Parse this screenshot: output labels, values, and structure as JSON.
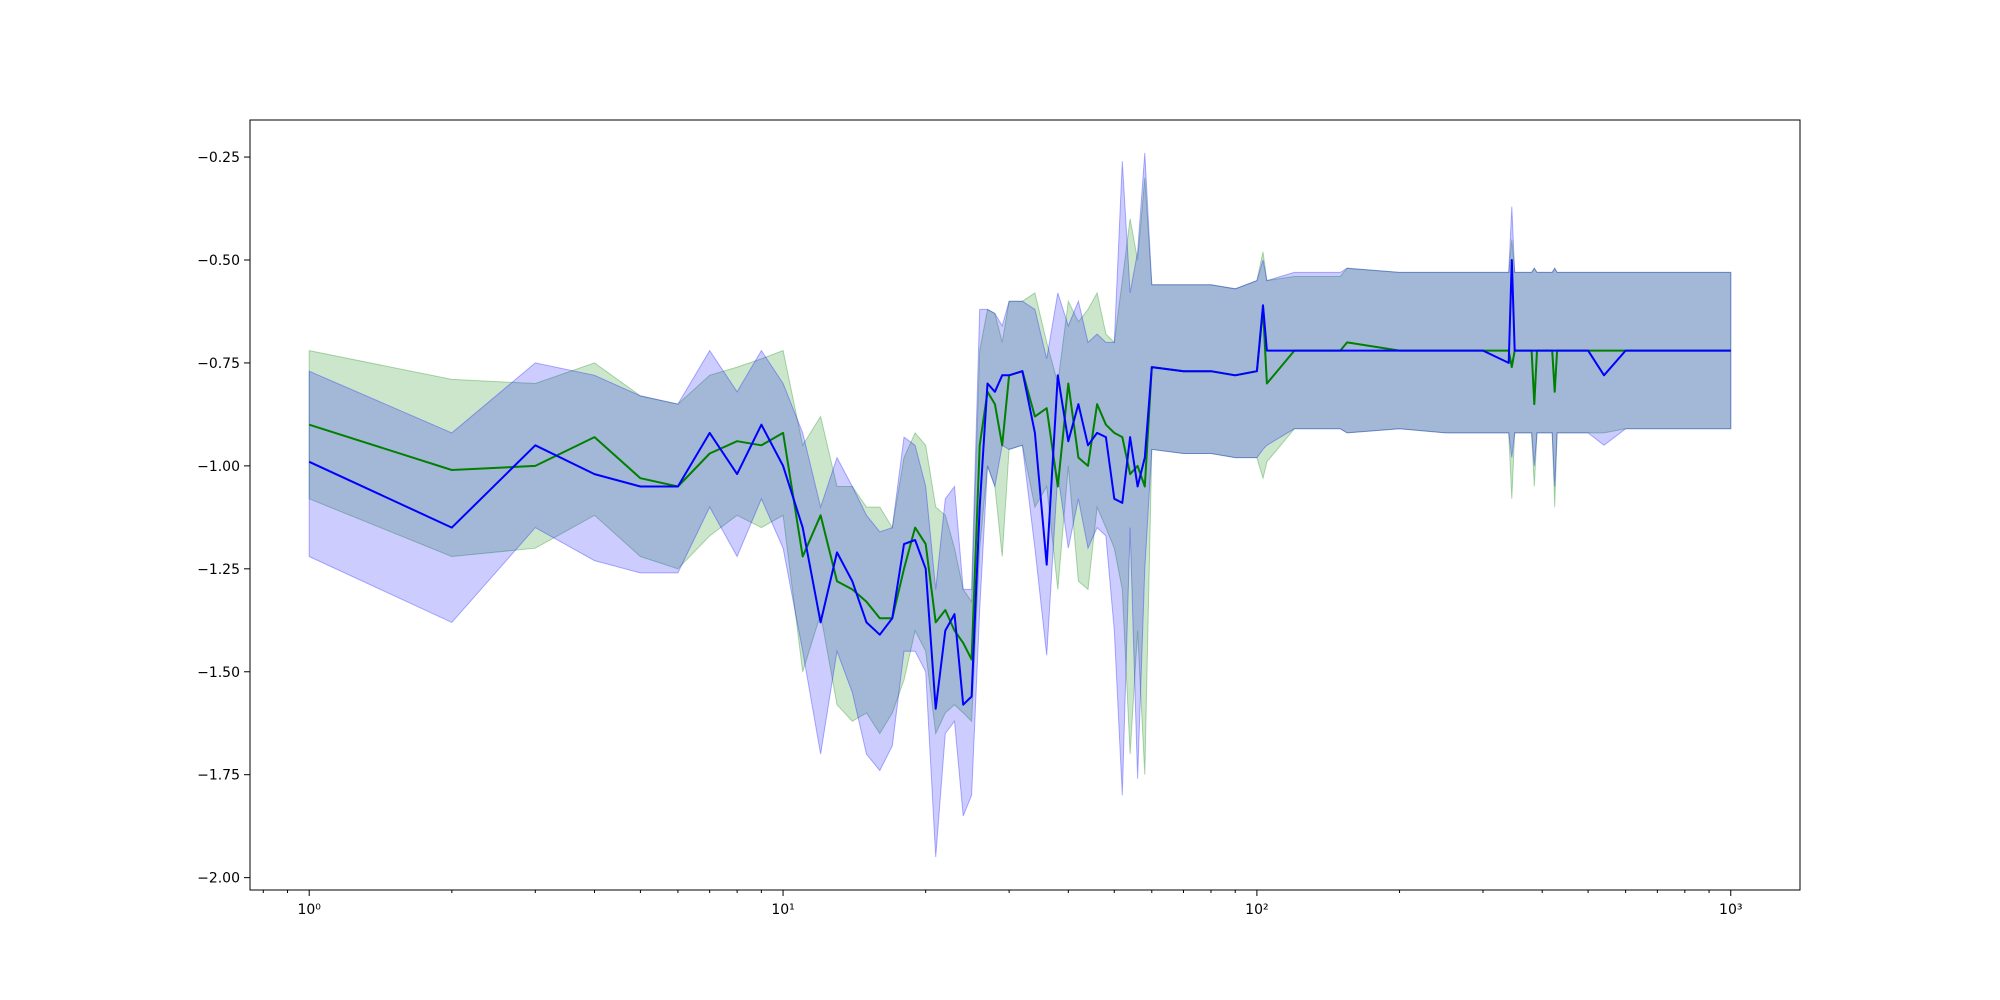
{
  "chart_data": {
    "type": "line",
    "title": "",
    "xlabel": "",
    "ylabel": "",
    "x_scale": "log",
    "xlim": [
      0.75,
      1400
    ],
    "ylim": [
      -2.03,
      -0.16
    ],
    "grid": false,
    "legend": "none",
    "x_ticks": [
      {
        "value": 1,
        "label": "10⁰"
      },
      {
        "value": 10,
        "label": "10¹"
      },
      {
        "value": 100,
        "label": "10²"
      },
      {
        "value": 1000,
        "label": "10³"
      }
    ],
    "y_ticks": [
      {
        "value": -0.25,
        "label": "−0.25"
      },
      {
        "value": -0.5,
        "label": "−0.50"
      },
      {
        "value": -0.75,
        "label": "−0.75"
      },
      {
        "value": -1.0,
        "label": "−1.00"
      },
      {
        "value": -1.25,
        "label": "−1.25"
      },
      {
        "value": -1.5,
        "label": "−1.50"
      },
      {
        "value": -1.75,
        "label": "−1.75"
      },
      {
        "value": -2.0,
        "label": "−2.00"
      }
    ],
    "series": [
      {
        "color": "#008000",
        "band_color": "#008000",
        "band_opacity": 0.2,
        "x": [
          1,
          2,
          3,
          4,
          5,
          6,
          7,
          8,
          9,
          10,
          11,
          12,
          13,
          14,
          15,
          16,
          17,
          18,
          19,
          20,
          21,
          22,
          23,
          24,
          25,
          26,
          27,
          28,
          29,
          30,
          32,
          34,
          36,
          38,
          40,
          42,
          44,
          46,
          48,
          50,
          52,
          54,
          56,
          58,
          60,
          70,
          80,
          90,
          100,
          103,
          105,
          120,
          150,
          155,
          200,
          250,
          300,
          340,
          345,
          350,
          380,
          385,
          390,
          420,
          425,
          430,
          500,
          540,
          600,
          700,
          800,
          1000
        ],
        "y": [
          -0.9,
          -1.01,
          -1.0,
          -0.93,
          -1.03,
          -1.05,
          -0.97,
          -0.94,
          -0.95,
          -0.92,
          -1.22,
          -1.12,
          -1.28,
          -1.3,
          -1.33,
          -1.37,
          -1.37,
          -1.25,
          -1.15,
          -1.19,
          -1.38,
          -1.35,
          -1.4,
          -1.43,
          -1.47,
          -0.95,
          -0.82,
          -0.85,
          -0.95,
          -0.78,
          -0.77,
          -0.88,
          -0.86,
          -1.05,
          -0.8,
          -0.98,
          -1.0,
          -0.85,
          -0.9,
          -0.92,
          -0.93,
          -1.02,
          -1.0,
          -1.05,
          -0.76,
          -0.77,
          -0.77,
          -0.78,
          -0.77,
          -0.62,
          -0.8,
          -0.72,
          -0.72,
          -0.7,
          -0.72,
          -0.72,
          -0.72,
          -0.72,
          -0.76,
          -0.72,
          -0.72,
          -0.85,
          -0.72,
          -0.72,
          -0.82,
          -0.72,
          -0.72,
          -0.72,
          -0.72,
          -0.72,
          -0.72,
          -0.72
        ],
        "upper": [
          -0.72,
          -0.79,
          -0.8,
          -0.75,
          -0.83,
          -0.85,
          -0.78,
          -0.76,
          -0.74,
          -0.72,
          -0.95,
          -0.88,
          -1.05,
          -1.05,
          -1.1,
          -1.1,
          -1.15,
          -0.98,
          -0.92,
          -0.95,
          -1.1,
          -1.12,
          -1.2,
          -1.3,
          -1.33,
          -0.72,
          -0.62,
          -0.63,
          -0.7,
          -0.6,
          -0.6,
          -0.58,
          -0.7,
          -0.8,
          -0.6,
          -0.65,
          -0.62,
          -0.58,
          -0.68,
          -0.7,
          -0.55,
          -0.4,
          -0.5,
          -0.3,
          -0.56,
          -0.56,
          -0.56,
          -0.57,
          -0.55,
          -0.48,
          -0.55,
          -0.54,
          -0.54,
          -0.52,
          -0.53,
          -0.53,
          -0.53,
          -0.53,
          -0.45,
          -0.53,
          -0.53,
          -0.52,
          -0.53,
          -0.53,
          -0.52,
          -0.53,
          -0.53,
          -0.53,
          -0.53,
          -0.53,
          -0.53,
          -0.53
        ],
        "lower": [
          -1.08,
          -1.22,
          -1.2,
          -1.12,
          -1.22,
          -1.25,
          -1.17,
          -1.12,
          -1.15,
          -1.12,
          -1.5,
          -1.36,
          -1.58,
          -1.62,
          -1.6,
          -1.65,
          -1.6,
          -1.52,
          -1.4,
          -1.45,
          -1.65,
          -1.6,
          -1.58,
          -1.6,
          -1.62,
          -1.2,
          -1.0,
          -1.05,
          -1.22,
          -0.96,
          -0.95,
          -1.1,
          -1.05,
          -1.3,
          -1.0,
          -1.28,
          -1.3,
          -1.1,
          -1.15,
          -1.2,
          -1.3,
          -1.7,
          -1.4,
          -1.75,
          -0.96,
          -0.97,
          -0.97,
          -0.98,
          -0.98,
          -1.03,
          -0.99,
          -0.91,
          -0.91,
          -0.92,
          -0.91,
          -0.92,
          -0.92,
          -0.92,
          -1.08,
          -0.92,
          -0.92,
          -1.05,
          -0.92,
          -0.92,
          -1.1,
          -0.92,
          -0.92,
          -0.92,
          -0.91,
          -0.91,
          -0.91,
          -0.91
        ]
      },
      {
        "color": "#0000ff",
        "band_color": "#0000ff",
        "band_opacity": 0.2,
        "x": [
          1,
          2,
          3,
          4,
          5,
          6,
          7,
          8,
          9,
          10,
          11,
          12,
          13,
          14,
          15,
          16,
          17,
          18,
          19,
          20,
          21,
          22,
          23,
          24,
          25,
          26,
          27,
          28,
          29,
          30,
          32,
          34,
          36,
          38,
          40,
          42,
          44,
          46,
          48,
          50,
          52,
          54,
          56,
          58,
          60,
          70,
          80,
          90,
          100,
          103,
          105,
          120,
          150,
          155,
          200,
          250,
          300,
          340,
          345,
          350,
          380,
          385,
          390,
          420,
          425,
          430,
          500,
          540,
          600,
          700,
          800,
          1000
        ],
        "y": [
          -0.99,
          -1.15,
          -0.95,
          -1.02,
          -1.05,
          -1.05,
          -0.92,
          -1.02,
          -0.9,
          -1.0,
          -1.15,
          -1.38,
          -1.21,
          -1.28,
          -1.38,
          -1.41,
          -1.37,
          -1.19,
          -1.18,
          -1.25,
          -1.59,
          -1.4,
          -1.36,
          -1.58,
          -1.56,
          -1.1,
          -0.8,
          -0.82,
          -0.78,
          -0.78,
          -0.77,
          -0.92,
          -1.24,
          -0.78,
          -0.94,
          -0.85,
          -0.95,
          -0.92,
          -0.93,
          -1.08,
          -1.09,
          -0.93,
          -1.05,
          -0.98,
          -0.76,
          -0.77,
          -0.77,
          -0.78,
          -0.77,
          -0.61,
          -0.72,
          -0.72,
          -0.72,
          -0.72,
          -0.72,
          -0.72,
          -0.72,
          -0.75,
          -0.5,
          -0.72,
          -0.72,
          -0.72,
          -0.72,
          -0.72,
          -0.72,
          -0.72,
          -0.72,
          -0.78,
          -0.72,
          -0.72,
          -0.72,
          -0.72
        ],
        "upper": [
          -0.77,
          -0.92,
          -0.75,
          -0.78,
          -0.83,
          -0.85,
          -0.72,
          -0.82,
          -0.72,
          -0.8,
          -0.92,
          -1.1,
          -0.98,
          -1.05,
          -1.12,
          -1.16,
          -1.15,
          -0.93,
          -0.95,
          -1.05,
          -1.3,
          -1.08,
          -1.05,
          -1.3,
          -1.3,
          -0.62,
          -0.62,
          -0.63,
          -0.66,
          -0.6,
          -0.6,
          -0.62,
          -0.74,
          -0.58,
          -0.66,
          -0.6,
          -0.7,
          -0.68,
          -0.7,
          -0.7,
          -0.26,
          -0.58,
          -0.48,
          -0.24,
          -0.56,
          -0.56,
          -0.56,
          -0.57,
          -0.55,
          -0.5,
          -0.55,
          -0.53,
          -0.53,
          -0.52,
          -0.53,
          -0.53,
          -0.53,
          -0.53,
          -0.37,
          -0.53,
          -0.53,
          -0.52,
          -0.53,
          -0.53,
          -0.52,
          -0.53,
          -0.53,
          -0.53,
          -0.53,
          -0.53,
          -0.53,
          -0.53
        ],
        "lower": [
          -1.22,
          -1.38,
          -1.15,
          -1.23,
          -1.26,
          -1.26,
          -1.1,
          -1.22,
          -1.08,
          -1.2,
          -1.45,
          -1.7,
          -1.45,
          -1.55,
          -1.7,
          -1.74,
          -1.68,
          -1.45,
          -1.45,
          -1.5,
          -1.95,
          -1.65,
          -1.62,
          -1.85,
          -1.8,
          -1.35,
          -1.0,
          -1.05,
          -0.95,
          -0.96,
          -0.95,
          -1.2,
          -1.46,
          -1.02,
          -1.2,
          -1.08,
          -1.2,
          -1.15,
          -1.17,
          -1.4,
          -1.8,
          -1.15,
          -1.76,
          -1.25,
          -0.96,
          -0.97,
          -0.97,
          -0.98,
          -0.98,
          -0.96,
          -0.95,
          -0.91,
          -0.91,
          -0.92,
          -0.91,
          -0.92,
          -0.92,
          -0.92,
          -0.98,
          -0.92,
          -0.92,
          -1.0,
          -0.92,
          -0.92,
          -1.05,
          -0.92,
          -0.92,
          -0.95,
          -0.91,
          -0.91,
          -0.91,
          -0.91
        ]
      }
    ]
  }
}
